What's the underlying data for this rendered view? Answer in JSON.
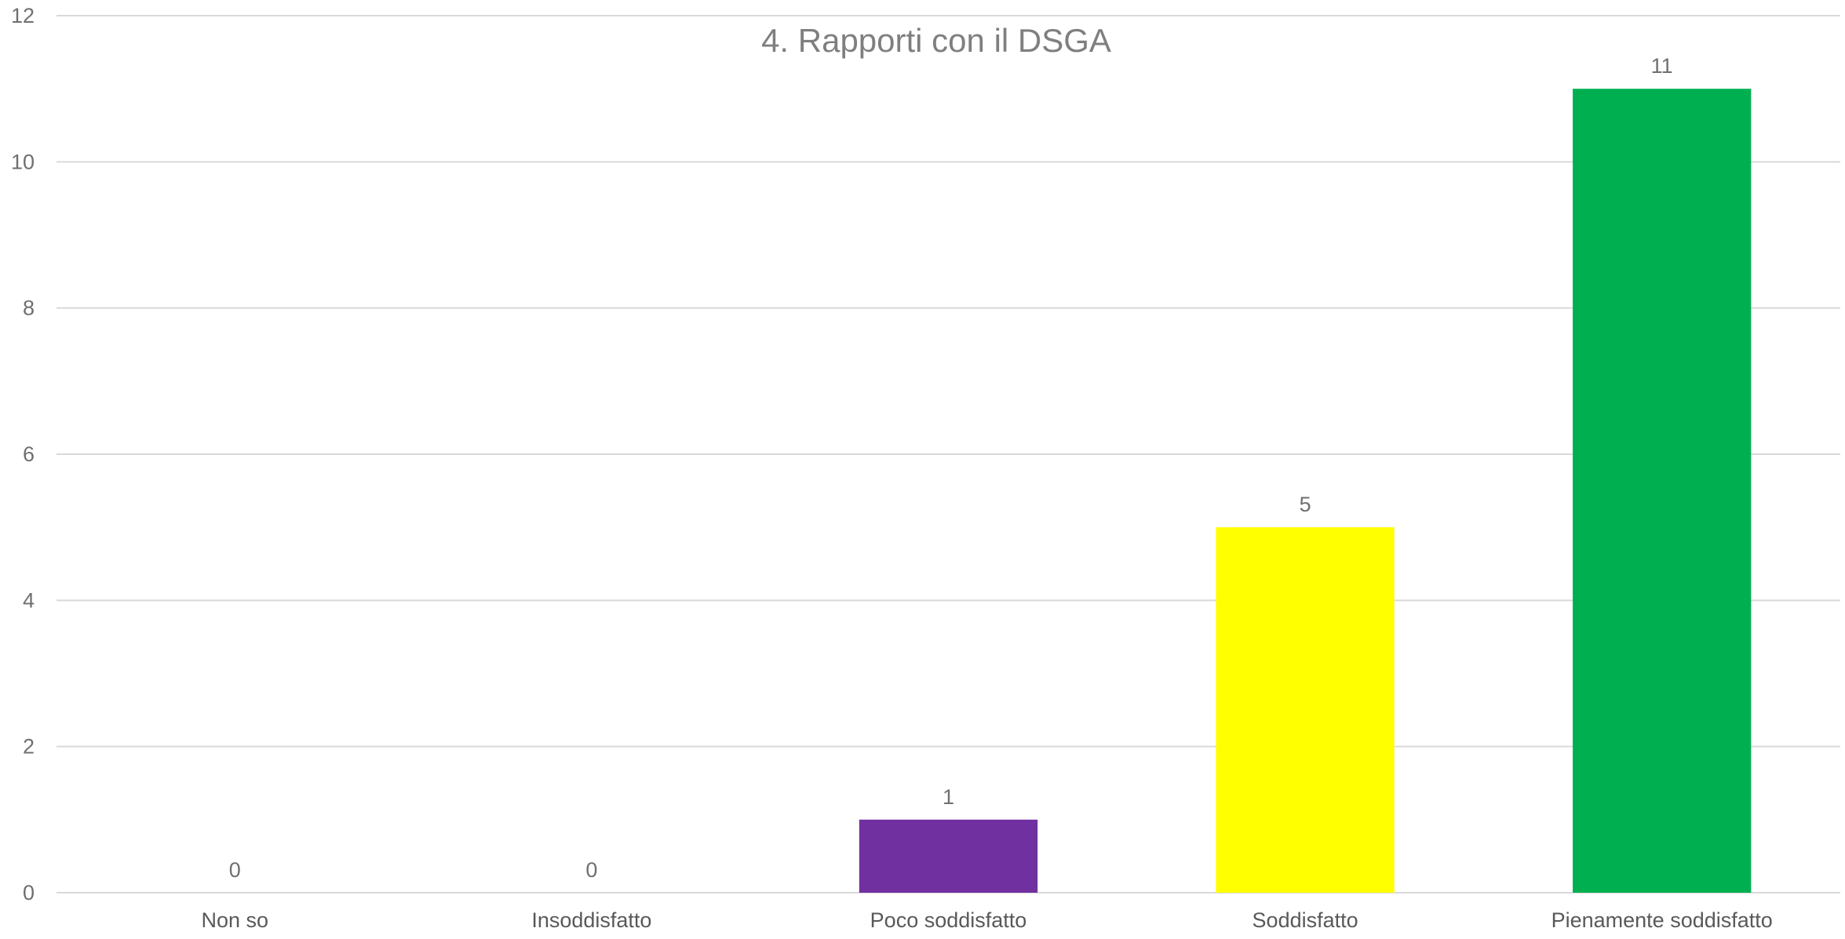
{
  "chart_data": {
    "type": "bar",
    "title": "4. Rapporti con il DSGA",
    "categories": [
      "Non so",
      "Insoddisfatto",
      "Poco soddisfatto",
      "Soddisfatto",
      "Pienamente soddisfatto"
    ],
    "values": [
      0,
      0,
      1,
      5,
      11
    ],
    "colors": [
      "#7030a0",
      "#7030a0",
      "#7030a0",
      "#ffff00",
      "#00b050"
    ],
    "ylim": [
      0,
      12
    ],
    "yticks": [
      0,
      2,
      4,
      6,
      8,
      10,
      12
    ],
    "grid": true,
    "legend": "none",
    "data_labels": true
  }
}
